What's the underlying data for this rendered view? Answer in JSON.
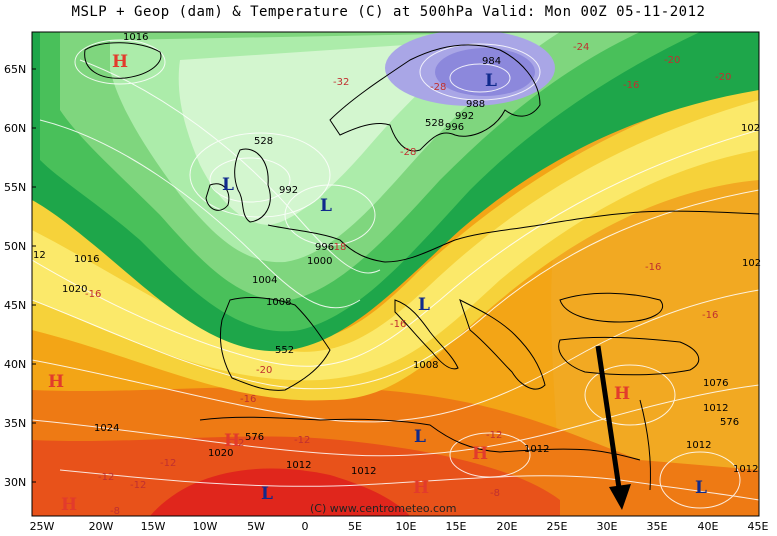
{
  "title": "MSLP + Geop (dam) & Temperature (C) at 500hPa  Valid: Mon 00Z 05-11-2012",
  "credit": "(C) www.centrometeo.com",
  "axes": {
    "lat_labels": [
      "65N",
      "60N",
      "55N",
      "50N",
      "45N",
      "40N",
      "35N",
      "30N"
    ],
    "lon_labels": [
      "25W",
      "20W",
      "15W",
      "10W",
      "5W",
      "0",
      "5E",
      "10E",
      "15E",
      "20E",
      "25E",
      "30E",
      "35E",
      "40E",
      "45E"
    ]
  },
  "pressure_centers": [
    {
      "type": "H",
      "color": "#e23b2c"
    },
    {
      "type": "L",
      "color": "#102a8c"
    },
    {
      "type": "L",
      "color": "#102a8c"
    },
    {
      "type": "L",
      "color": "#102a8c"
    },
    {
      "type": "H",
      "color": "#e23b2c"
    },
    {
      "type": "L",
      "color": "#102a8c"
    },
    {
      "type": "H",
      "color": "#e23b2c"
    },
    {
      "type": "L",
      "color": "#102a8c"
    },
    {
      "type": "H",
      "color": "#e23b2c"
    },
    {
      "type": "L",
      "color": "#102a8c"
    },
    {
      "type": "H",
      "color": "#e23b2c"
    },
    {
      "type": "H",
      "color": "#e23b2c"
    },
    {
      "type": "L",
      "color": "#102a8c"
    },
    {
      "type": "H",
      "color": "#e23b2c"
    }
  ],
  "isobar_labels": [
    "1016",
    "984",
    "988",
    "992",
    "996",
    "528",
    "528",
    "992",
    "996",
    "1000",
    "1004",
    "1008",
    "1016",
    "1020",
    "552",
    "1008",
    "576",
    "1024",
    "1020",
    "1012",
    "1012",
    "1012",
    "1076",
    "1012",
    "576",
    "1012",
    "1012",
    "102",
    "102",
    "12"
  ],
  "temperature_labels": [
    "-24",
    "-20",
    "-20",
    "-16",
    "-32",
    "-28",
    "-28",
    "-16",
    "-16",
    "-18",
    "-16",
    "-16",
    "-20",
    "-16",
    "-12",
    "-12",
    "-12",
    "-8",
    "-12",
    "-12",
    "-12",
    "-8"
  ]
}
